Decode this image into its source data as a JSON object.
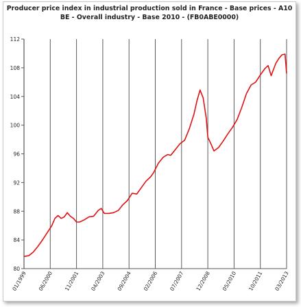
{
  "chart_data": {
    "type": "line",
    "title_lines": [
      "Producer price index in industrial production sold in France - Base prices - A10",
      "BE - Overall industry - Base 2010 - (FB0ABE0000)"
    ],
    "xlabel": "",
    "ylabel": "",
    "ylim": [
      80,
      112
    ],
    "yticks": [
      "80",
      "84",
      "88",
      "92",
      "96",
      "100",
      "104",
      "108",
      "112"
    ],
    "xticks": [
      "01/1999",
      "06/2000",
      "11/2001",
      "04/2003",
      "09/2004",
      "02/2006",
      "07/2007",
      "12/2008",
      "05/2010",
      "10/2011",
      "03/2013"
    ],
    "x_start": "1999-01",
    "x_end": "2013-03",
    "grid": {
      "vertical": true,
      "horizontal": false
    },
    "series": [
      {
        "color": "#e01010",
        "points": [
          [
            "1999-01",
            81.7
          ],
          [
            "1999-04",
            81.8
          ],
          [
            "1999-07",
            82.3
          ],
          [
            "1999-10",
            83.1
          ],
          [
            "2000-01",
            84.0
          ],
          [
            "2000-04",
            85.0
          ],
          [
            "2000-07",
            86.0
          ],
          [
            "2000-09",
            87.0
          ],
          [
            "2000-11",
            87.4
          ],
          [
            "2001-01",
            87.0
          ],
          [
            "2001-03",
            87.2
          ],
          [
            "2001-05",
            87.8
          ],
          [
            "2001-07",
            87.3
          ],
          [
            "2001-09",
            87.0
          ],
          [
            "2001-11",
            86.5
          ],
          [
            "2002-01",
            86.5
          ],
          [
            "2002-04",
            86.8
          ],
          [
            "2002-07",
            87.2
          ],
          [
            "2002-10",
            87.3
          ],
          [
            "2003-01",
            88.1
          ],
          [
            "2003-03",
            88.4
          ],
          [
            "2003-05",
            87.7
          ],
          [
            "2003-08",
            87.7
          ],
          [
            "2003-11",
            87.8
          ],
          [
            "2004-02",
            88.1
          ],
          [
            "2004-05",
            88.9
          ],
          [
            "2004-08",
            89.5
          ],
          [
            "2004-11",
            90.5
          ],
          [
            "2005-02",
            90.4
          ],
          [
            "2005-05",
            91.3
          ],
          [
            "2005-08",
            92.2
          ],
          [
            "2005-11",
            92.8
          ],
          [
            "2006-01",
            93.4
          ],
          [
            "2006-04",
            94.7
          ],
          [
            "2006-07",
            95.5
          ],
          [
            "2006-10",
            95.9
          ],
          [
            "2006-12",
            95.8
          ],
          [
            "2007-03",
            96.6
          ],
          [
            "2007-06",
            97.4
          ],
          [
            "2007-09",
            97.9
          ],
          [
            "2007-12",
            99.5
          ],
          [
            "2008-03",
            101.5
          ],
          [
            "2008-05",
            103.4
          ],
          [
            "2008-07",
            104.9
          ],
          [
            "2008-09",
            103.8
          ],
          [
            "2008-11",
            101.0
          ],
          [
            "2008-12",
            98.3
          ],
          [
            "2009-02",
            97.4
          ],
          [
            "2009-04",
            96.4
          ],
          [
            "2009-07",
            96.9
          ],
          [
            "2009-10",
            97.8
          ],
          [
            "2010-01",
            98.8
          ],
          [
            "2010-04",
            99.7
          ],
          [
            "2010-07",
            100.8
          ],
          [
            "2010-10",
            102.5
          ],
          [
            "2011-01",
            104.4
          ],
          [
            "2011-04",
            105.6
          ],
          [
            "2011-07",
            106.0
          ],
          [
            "2011-10",
            107.0
          ],
          [
            "2012-01",
            107.9
          ],
          [
            "2012-03",
            108.3
          ],
          [
            "2012-05",
            106.9
          ],
          [
            "2012-08",
            108.6
          ],
          [
            "2012-10",
            109.3
          ],
          [
            "2012-12",
            109.8
          ],
          [
            "2013-02",
            109.9
          ],
          [
            "2013-03",
            107.2
          ]
        ]
      }
    ]
  }
}
